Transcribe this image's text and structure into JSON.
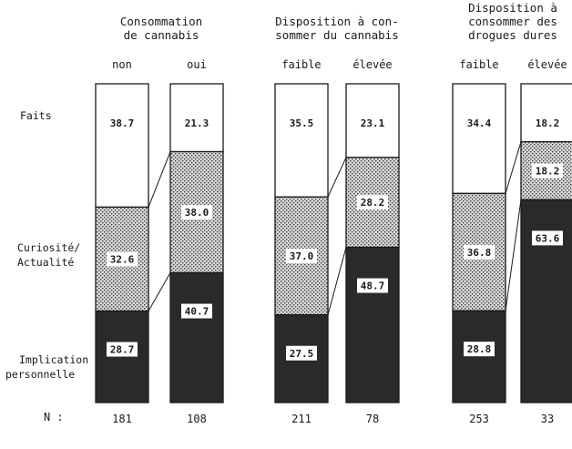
{
  "chart_data": {
    "type": "bar",
    "stacked": true,
    "segments_bottom_to_top": [
      "Implication personnelle",
      "Curiosité/ Actualité",
      "Faits"
    ],
    "row_labels": {
      "faits": "Faits",
      "curiosite_1": "Curiosité/",
      "curiosite_2": "Actualité",
      "implication_1": "Implication",
      "implication_2": "personnelle"
    },
    "n_label": "N :",
    "groups": [
      {
        "title_lines": [
          "Consommation",
          "de cannabis"
        ],
        "bars": [
          {
            "category": "non",
            "faits": "38.7",
            "curiosite": "32.6",
            "implication": "28.7",
            "n": "181"
          },
          {
            "category": "oui",
            "faits": "21.3",
            "curiosite": "38.0",
            "implication": "40.7",
            "n": "108"
          }
        ]
      },
      {
        "title_lines": [
          "Disposition à con-",
          "sommer du cannabis"
        ],
        "bars": [
          {
            "category": "faible",
            "faits": "35.5",
            "curiosite": "37.0",
            "implication": "27.5",
            "n": "211"
          },
          {
            "category": "élevée",
            "faits": "23.1",
            "curiosite": "28.2",
            "implication": "48.7",
            "n": "78"
          }
        ]
      },
      {
        "title_lines": [
          "Disposition à",
          "consommer des",
          "drogues dures"
        ],
        "bars": [
          {
            "category": "faible",
            "faits": "34.4",
            "curiosite": "36.8",
            "implication": "28.8",
            "n": "253"
          },
          {
            "category": "élevée",
            "faits": "18.2",
            "curiosite": "18.2",
            "implication": "63.6",
            "n": "33"
          }
        ]
      }
    ],
    "colors": {
      "faits": "#ffffff",
      "curiosite_pattern": "#c8c8c8",
      "implication": "#2a2a2a",
      "outline": "#1a1a1a"
    }
  }
}
